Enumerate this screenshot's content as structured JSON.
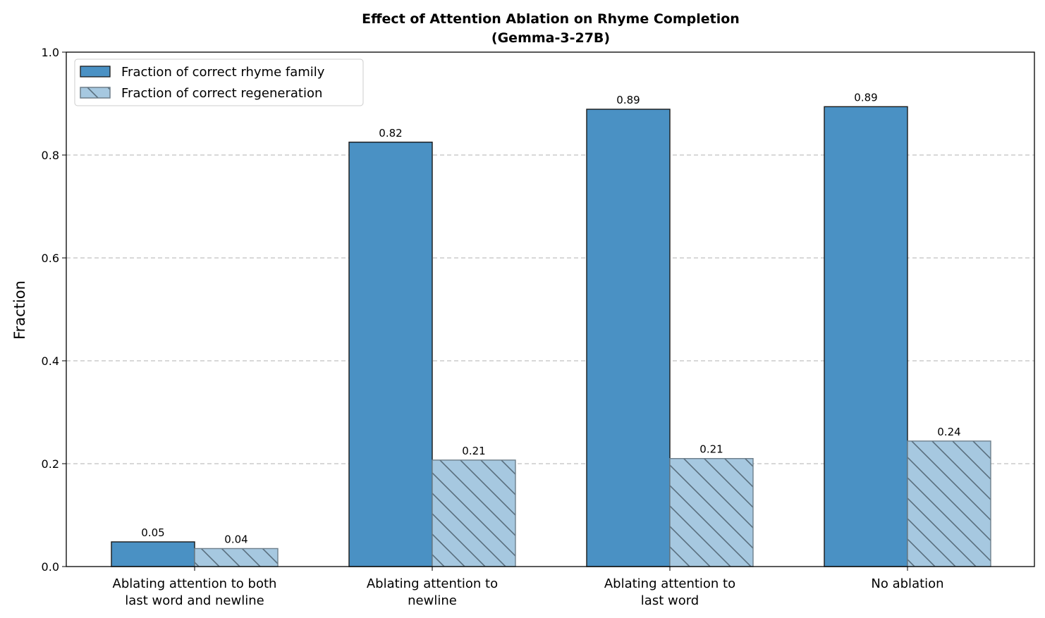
{
  "chart_data": {
    "type": "bar",
    "title": "Effect of Attention Ablation on Rhyme Completion",
    "subtitle": "(Gemma-3-27B)",
    "xlabel": "",
    "ylabel": "Fraction",
    "ylim": [
      0,
      1.0
    ],
    "yticks": [
      "0.0",
      "0.2",
      "0.4",
      "0.6",
      "0.8",
      "1.0"
    ],
    "grid": "y, dashed",
    "legend_position": "top-left",
    "categories": [
      [
        "Ablating attention to both",
        "last word and newline"
      ],
      [
        "Ablating attention to",
        "newline"
      ],
      [
        "Ablating attention to",
        "last word"
      ],
      [
        "No ablation"
      ]
    ],
    "series": [
      {
        "name": "Fraction of correct rhyme family",
        "values": [
          0.048,
          0.825,
          0.889,
          0.894
        ],
        "data_labels": [
          "0.05",
          "0.82",
          "0.89",
          "0.89"
        ],
        "color": "#4a91c4",
        "hatch": "none"
      },
      {
        "name": "Fraction of correct regeneration",
        "values": [
          0.035,
          0.207,
          0.21,
          0.244
        ],
        "data_labels": [
          "0.04",
          "0.21",
          "0.21",
          "0.24"
        ],
        "color": "#a6c8e0",
        "hatch": "backslash"
      }
    ]
  }
}
